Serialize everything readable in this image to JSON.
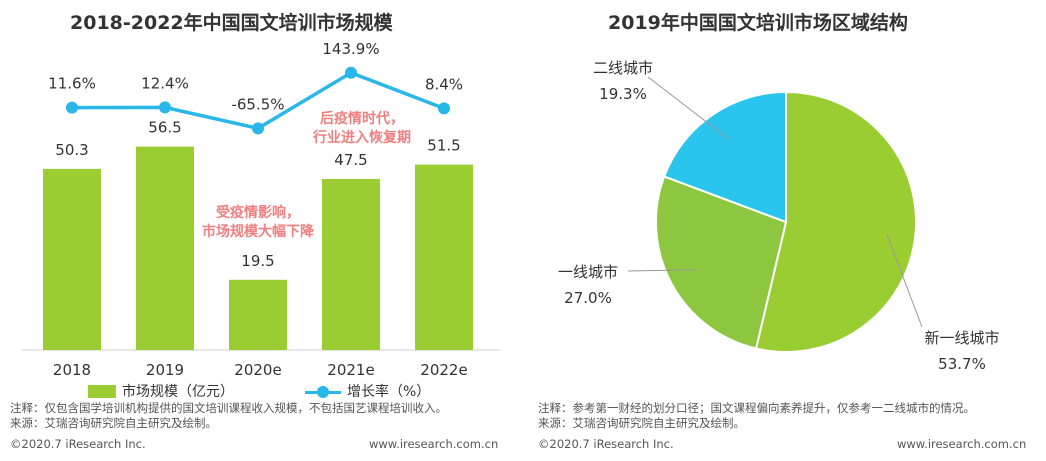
{
  "chart_data": [
    {
      "type": "bar+line",
      "title": "2018-2022年中国国文培训市场规模",
      "categories": [
        "2018",
        "2019",
        "2020e",
        "2021e",
        "2022e"
      ],
      "series": [
        {
          "name": "市场规模（亿元）",
          "type": "bar",
          "values": [
            50.3,
            56.5,
            19.5,
            47.5,
            51.5
          ],
          "labels": [
            "50.3",
            "56.5",
            "19.5",
            "47.5",
            "51.5"
          ]
        },
        {
          "name": "增长率（%）",
          "type": "line",
          "values": [
            11.6,
            12.4,
            -65.5,
            143.9,
            8.4
          ],
          "labels": [
            "11.6%",
            "12.4%",
            "-65.5%",
            "143.9%",
            "8.4%"
          ]
        }
      ],
      "annotations": [
        {
          "lines": [
            "后疫情时代，",
            "行业进入恢复期"
          ]
        },
        {
          "lines": [
            "受疫情影响，",
            "市场规模大幅下降"
          ]
        }
      ]
    },
    {
      "type": "pie",
      "title": "2019年中国国文培训市场区域结构",
      "slices": [
        {
          "label": "新一线城市",
          "value": 53.7,
          "display": "53.7%"
        },
        {
          "label": "一线城市",
          "value": 27.0,
          "display": "27.0%"
        },
        {
          "label": "二线城市",
          "value": 19.3,
          "display": "19.3%"
        }
      ]
    }
  ],
  "colors": {
    "bar": "#9ACD32",
    "line": "#29B6E8",
    "pie": [
      "#9ACD32",
      "#8DC63F",
      "#29C5EC"
    ],
    "annotation": "#F08080"
  },
  "left_panel": {
    "legend_bar": "市场规模（亿元）",
    "legend_line": "增长率（%）",
    "note": "注释：仅包含国学培训机构提供的国文培训课程收入规模，不包括国艺课程培训收入。",
    "source": "来源：艾瑞咨询研究院自主研究及绘制。",
    "copyright": "©2020.7 iResearch Inc.",
    "website": "www.iresearch.com.cn"
  },
  "right_panel": {
    "note": "注释：参考第一财经的划分口径；国文课程偏向素养提升，仅参考一二线城市的情况。",
    "source": "来源：艾瑞咨询研究院自主研究及绘制。",
    "copyright": "©2020.7 iResearch Inc.",
    "website": "www.iresearch.com.cn"
  }
}
